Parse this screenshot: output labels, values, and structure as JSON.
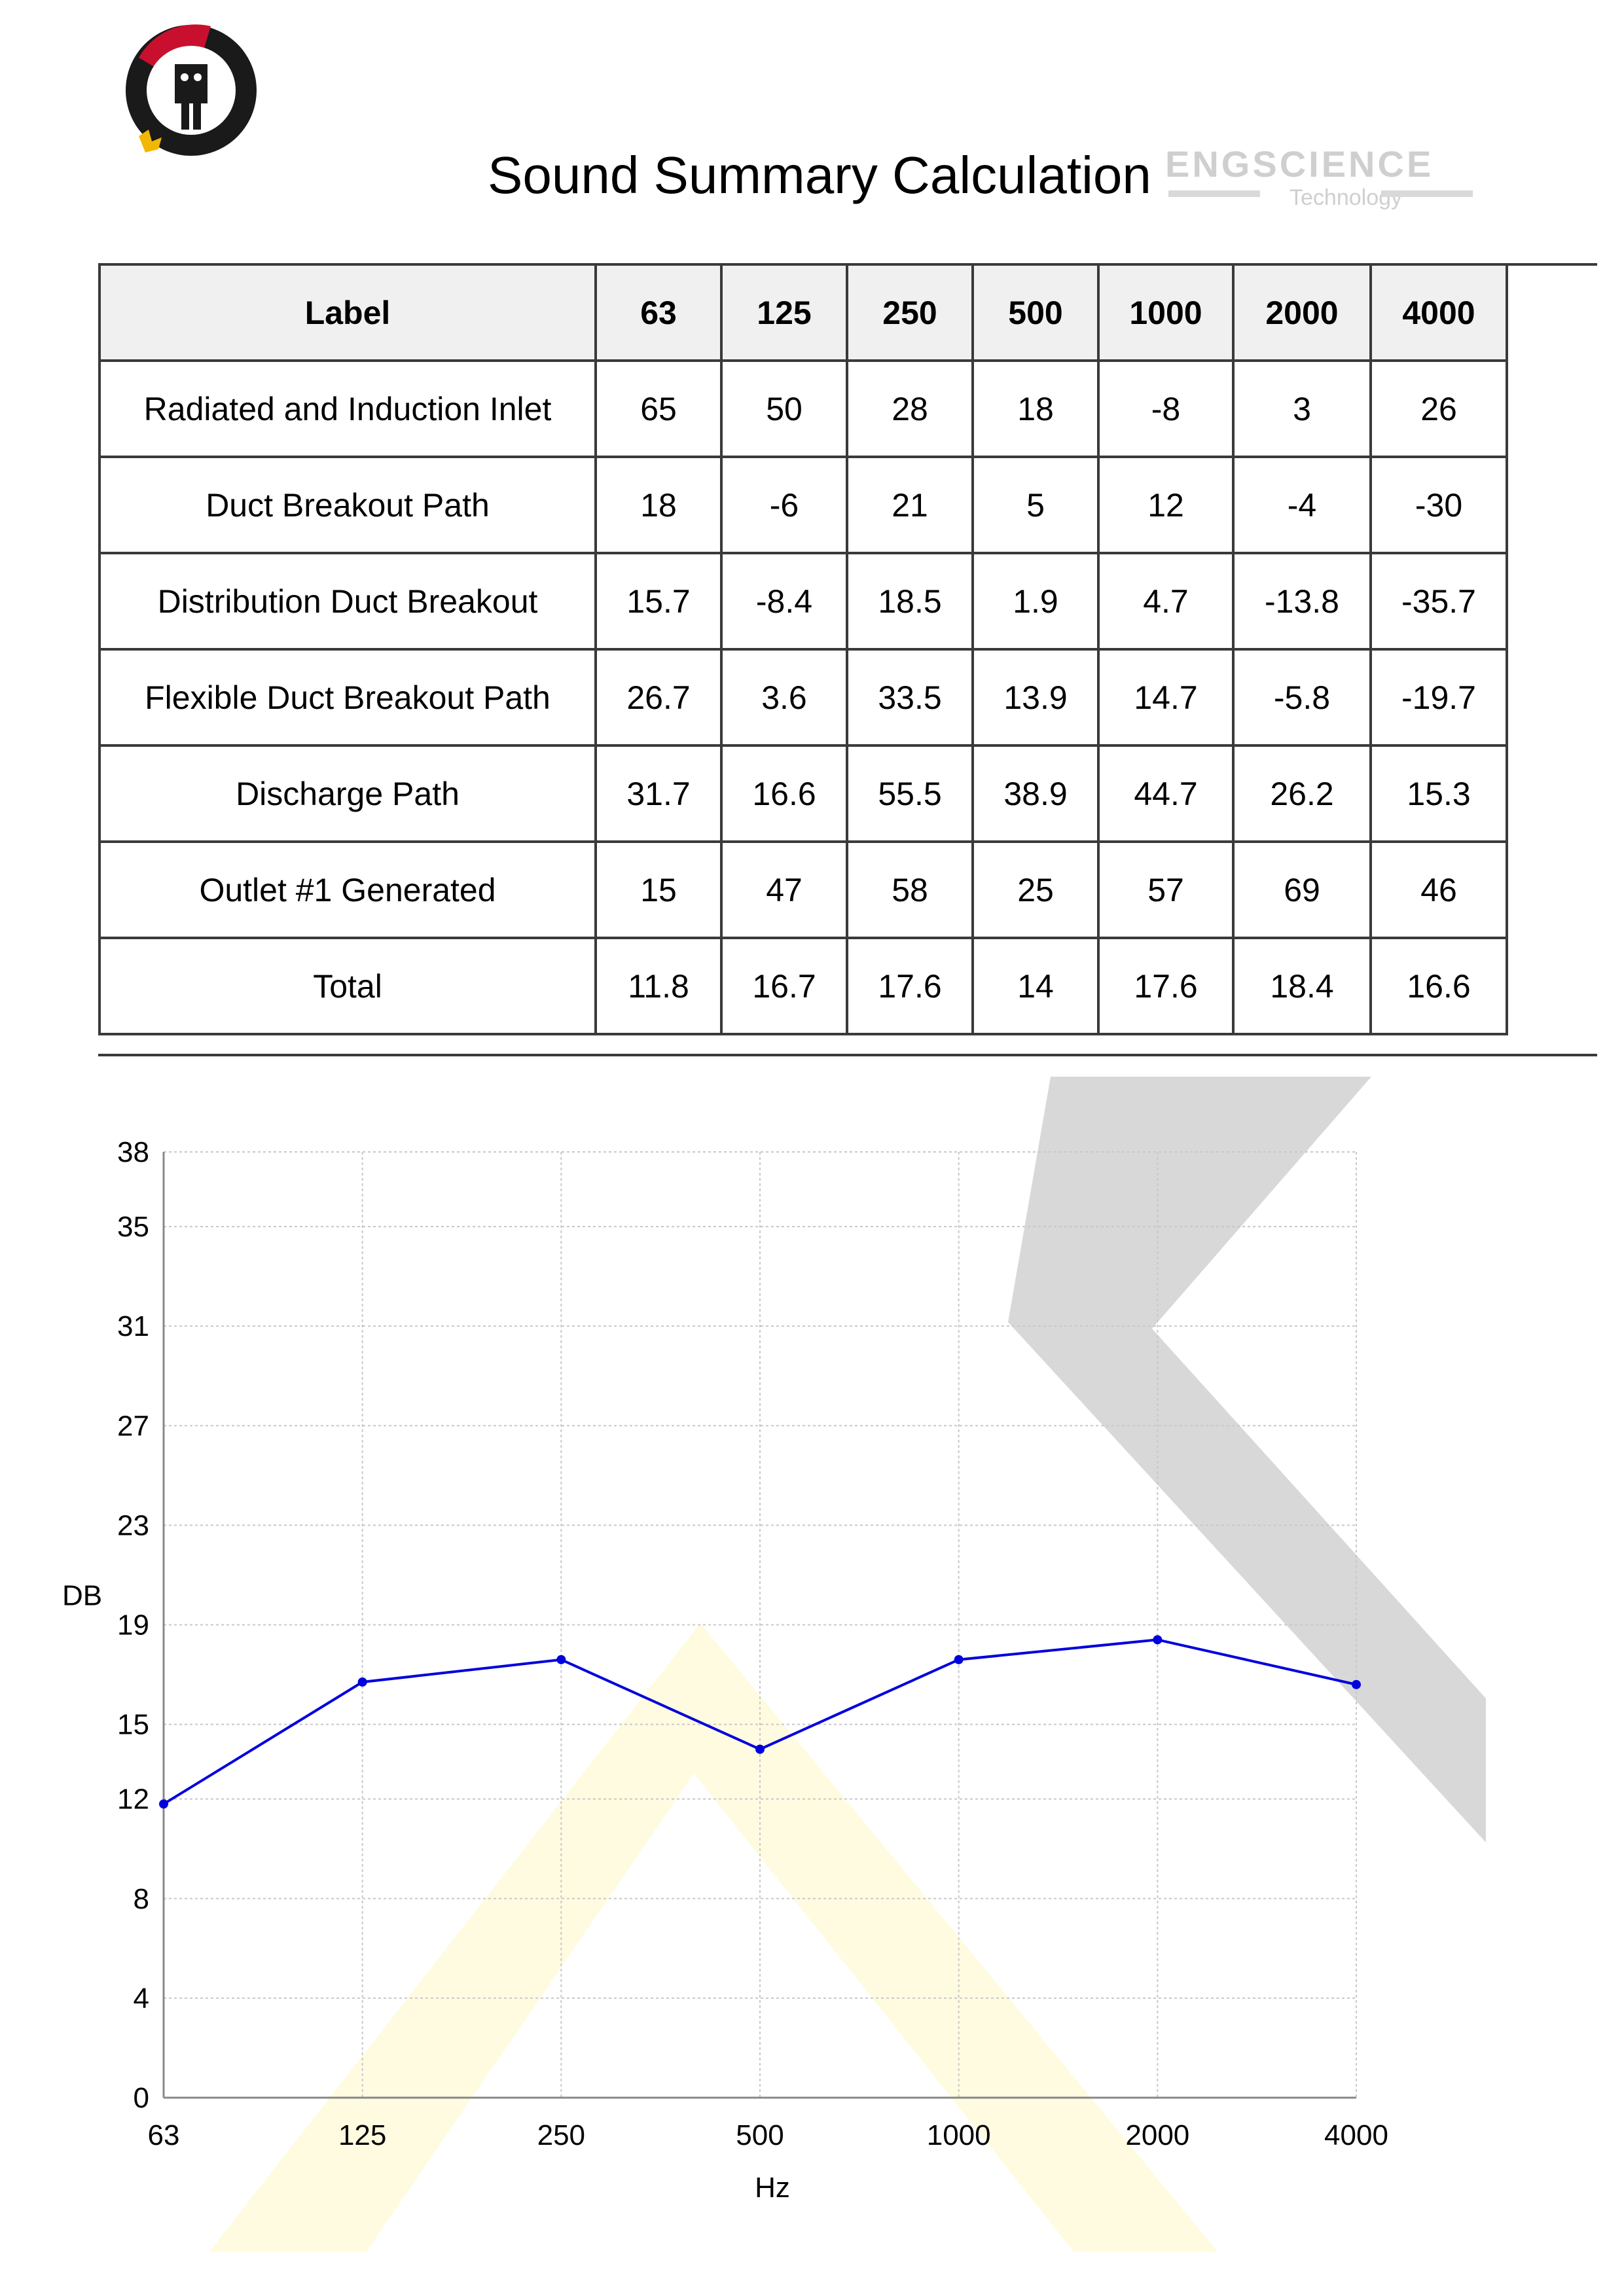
{
  "page_title": "Sound Summary Calculation",
  "brand": {
    "text": "ENGSCIENCE",
    "subtext": "Technology"
  },
  "table": {
    "headers": [
      "Label",
      "63",
      "125",
      "250",
      "500",
      "1000",
      "2000",
      "4000"
    ],
    "rows": [
      [
        "Radiated and Induction Inlet",
        "65",
        "50",
        "28",
        "18",
        "-8",
        "3",
        "26"
      ],
      [
        "Duct Breakout Path",
        "18",
        "-6",
        "21",
        "5",
        "12",
        "-4",
        "-30"
      ],
      [
        "Distribution Duct Breakout",
        "15.7",
        "-8.4",
        "18.5",
        "1.9",
        "4.7",
        "-13.8",
        "-35.7"
      ],
      [
        "Flexible Duct Breakout Path",
        "26.7",
        "3.6",
        "33.5",
        "13.9",
        "14.7",
        "-5.8",
        "-19.7"
      ],
      [
        "Discharge Path",
        "31.7",
        "16.6",
        "55.5",
        "38.9",
        "44.7",
        "26.2",
        "15.3"
      ],
      [
        "Outlet #1 Generated",
        "15",
        "47",
        "58",
        "25",
        "57",
        "69",
        "46"
      ],
      [
        "Total",
        "11.8",
        "16.7",
        "17.6",
        "14",
        "17.6",
        "18.4",
        "16.6"
      ]
    ]
  },
  "chart_data": {
    "type": "line",
    "x": [
      "63",
      "125",
      "250",
      "500",
      "1000",
      "2000",
      "4000"
    ],
    "series": [
      {
        "values": [
          11.8,
          16.7,
          17.6,
          14,
          17.6,
          18.4,
          16.6
        ],
        "color": "#0000dd"
      }
    ],
    "yticks": [
      0,
      4,
      8,
      12,
      15,
      19,
      23,
      27,
      31,
      35,
      38
    ],
    "ylim": [
      0,
      38
    ],
    "xlabel": "Hz",
    "ylabel": "DB",
    "grid": true,
    "grid_color": "#c8c8c8",
    "x_scale": "log2-categorical"
  },
  "colors": {
    "watermark_gray": "#d6d6d6",
    "watermark_yellow": "#fffbe0",
    "logo_red": "#c8102e",
    "logo_black": "#1a1a1a",
    "logo_gold": "#f2b705"
  }
}
